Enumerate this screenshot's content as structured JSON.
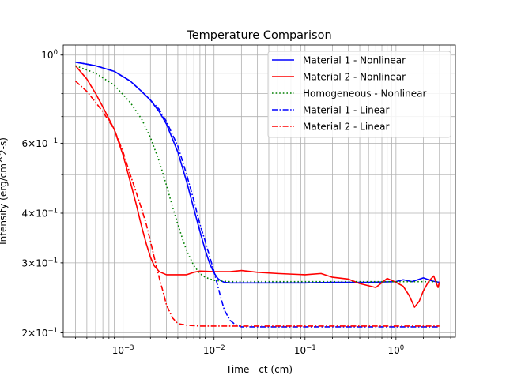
{
  "chart_data": {
    "type": "line",
    "title": "Temperature Comparison",
    "xlabel": "Time - ct (cm)",
    "ylabel": "Intensity (erg/cm^2-s)",
    "xscale": "log",
    "yscale": "log",
    "xlim": [
      0.00022,
      4.5
    ],
    "ylim": [
      0.195,
      1.06
    ],
    "grid": "major and minor",
    "legend": "top-right",
    "x_ticks": [
      {
        "value": 0.001,
        "base": "10",
        "exp": "−3"
      },
      {
        "value": 0.01,
        "base": "10",
        "exp": "−2"
      },
      {
        "value": 0.1,
        "base": "10",
        "exp": "−1"
      },
      {
        "value": 1,
        "base": "10",
        "exp": "0"
      }
    ],
    "y_ticks": [
      {
        "value": 1.0,
        "mant": "",
        "base": "10",
        "exp": "0"
      },
      {
        "value": 0.6,
        "mant": "6×",
        "base": "10",
        "exp": "−1"
      },
      {
        "value": 0.4,
        "mant": "4×",
        "base": "10",
        "exp": "−1"
      },
      {
        "value": 0.3,
        "mant": "3×",
        "base": "10",
        "exp": "−1"
      },
      {
        "value": 0.2,
        "mant": "2×",
        "base": "10",
        "exp": "−1"
      }
    ],
    "series": [
      {
        "name": "Material 1 - Nonlinear",
        "color": "#0000ff",
        "dash": "solid",
        "x": [
          0.0003,
          0.0005,
          0.0008,
          0.0012,
          0.0016,
          0.002,
          0.0025,
          0.003,
          0.004,
          0.005,
          0.006,
          0.007,
          0.008,
          0.009,
          0.01,
          0.011,
          0.012,
          0.013,
          0.015,
          0.02,
          0.05,
          0.1,
          0.2,
          0.5,
          1,
          1.2,
          1.5,
          2,
          2.5,
          3
        ],
        "y": [
          0.96,
          0.94,
          0.91,
          0.86,
          0.81,
          0.77,
          0.72,
          0.67,
          0.57,
          0.48,
          0.41,
          0.36,
          0.323,
          0.298,
          0.283,
          0.274,
          0.27,
          0.268,
          0.267,
          0.267,
          0.267,
          0.267,
          0.268,
          0.268,
          0.269,
          0.272,
          0.269,
          0.275,
          0.27,
          0.268
        ]
      },
      {
        "name": "Material 2 - Nonlinear",
        "color": "#ff0000",
        "dash": "solid",
        "x": [
          0.0003,
          0.0004,
          0.0005,
          0.0006,
          0.0008,
          0.001,
          0.0012,
          0.0014,
          0.0016,
          0.0018,
          0.002,
          0.0022,
          0.0025,
          0.003,
          0.004,
          0.005,
          0.006,
          0.007,
          0.01,
          0.015,
          0.02,
          0.03,
          0.05,
          0.1,
          0.15,
          0.2,
          0.3,
          0.4,
          0.6,
          0.8,
          1.0,
          1.2,
          1.4,
          1.6,
          1.8,
          2.0,
          2.3,
          2.6,
          2.9,
          3.0
        ],
        "y": [
          0.94,
          0.87,
          0.8,
          0.74,
          0.65,
          0.56,
          0.48,
          0.42,
          0.37,
          0.335,
          0.31,
          0.295,
          0.285,
          0.28,
          0.28,
          0.28,
          0.284,
          0.286,
          0.285,
          0.285,
          0.287,
          0.284,
          0.282,
          0.28,
          0.282,
          0.276,
          0.273,
          0.266,
          0.26,
          0.274,
          0.268,
          0.262,
          0.248,
          0.232,
          0.24,
          0.255,
          0.27,
          0.278,
          0.26,
          0.268
        ]
      },
      {
        "name": "Homogeneous - Nonlinear",
        "color": "#008000",
        "dash": "dotted",
        "x": [
          0.0003,
          0.0005,
          0.0008,
          0.0012,
          0.0016,
          0.002,
          0.0025,
          0.003,
          0.0035,
          0.004,
          0.0045,
          0.005,
          0.006,
          0.007,
          0.008,
          0.01,
          0.012,
          0.015,
          0.02,
          0.05,
          0.1,
          0.5,
          1,
          3
        ],
        "y": [
          0.94,
          0.9,
          0.84,
          0.76,
          0.69,
          0.62,
          0.54,
          0.47,
          0.415,
          0.375,
          0.345,
          0.322,
          0.295,
          0.282,
          0.276,
          0.271,
          0.27,
          0.269,
          0.269,
          0.269,
          0.269,
          0.269,
          0.269,
          0.269
        ]
      },
      {
        "name": "Material 1 - Linear",
        "color": "#0000ff",
        "dash": "dashdot",
        "x": [
          0.0003,
          0.0005,
          0.0008,
          0.0012,
          0.0016,
          0.002,
          0.0025,
          0.003,
          0.004,
          0.005,
          0.006,
          0.007,
          0.008,
          0.009,
          0.01,
          0.011,
          0.012,
          0.013,
          0.015,
          0.017,
          0.02,
          0.03,
          0.1,
          1,
          3
        ],
        "y": [
          0.96,
          0.94,
          0.91,
          0.86,
          0.81,
          0.77,
          0.73,
          0.68,
          0.59,
          0.5,
          0.43,
          0.375,
          0.34,
          0.31,
          0.285,
          0.262,
          0.243,
          0.228,
          0.215,
          0.21,
          0.207,
          0.207,
          0.207,
          0.207,
          0.207
        ]
      },
      {
        "name": "Material 2 - Linear",
        "color": "#ff0000",
        "dash": "dashdot",
        "x": [
          0.0003,
          0.0004,
          0.0005,
          0.0006,
          0.0008,
          0.001,
          0.0012,
          0.0014,
          0.0016,
          0.0018,
          0.002,
          0.0022,
          0.0025,
          0.0028,
          0.003,
          0.0035,
          0.004,
          0.005,
          0.007,
          0.01,
          0.1,
          1,
          3
        ],
        "y": [
          0.86,
          0.81,
          0.76,
          0.72,
          0.65,
          0.57,
          0.5,
          0.45,
          0.41,
          0.375,
          0.34,
          0.31,
          0.275,
          0.25,
          0.235,
          0.218,
          0.211,
          0.209,
          0.208,
          0.208,
          0.208,
          0.208,
          0.208
        ]
      }
    ]
  }
}
